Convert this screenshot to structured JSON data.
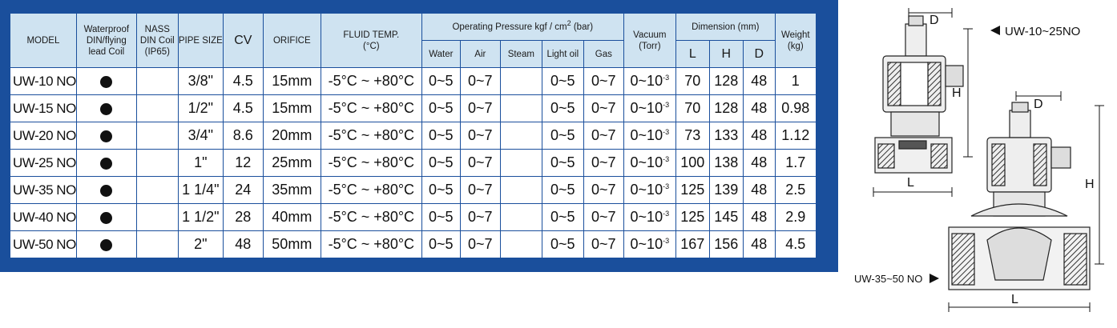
{
  "headers": {
    "model": "MODEL",
    "coil": "Waterproof DIN/flying lead Coil",
    "nass": "NASS DIN Coil (IP65)",
    "pipe": "PIPE SIZE",
    "cv": "CV",
    "orifice": "ORIFICE",
    "fluid": "FLUID TEMP.",
    "fluid_unit": "(°C)",
    "pressure": "Operating Pressure kgf / cm",
    "pressure_sup": "2",
    "pressure_tail": " (bar)",
    "water": "Water",
    "air": "Air",
    "steam": "Steam",
    "lightoil": "Light oil",
    "gas": "Gas",
    "vacuum": "Vacuum",
    "vacuum_unit": "(Torr)",
    "dimension": "Dimension (mm)",
    "dim_l": "L",
    "dim_h": "H",
    "dim_d": "D",
    "weight": "Weight",
    "weight_unit": "(kg)"
  },
  "rows": [
    {
      "model": "UW-10 NO",
      "pipe": "3/8\"",
      "cv": "4.5",
      "orifice": "15mm",
      "temp": "-5°C ~ +80°C",
      "water": "0~5",
      "air": "0~7",
      "steam": "",
      "lightoil": "0~5",
      "gas": "0~7",
      "vac_base": "0~10",
      "vac_exp": "-3",
      "l": "70",
      "h": "128",
      "d": "48",
      "weight": "1"
    },
    {
      "model": "UW-15 NO",
      "pipe": "1/2\"",
      "cv": "4.5",
      "orifice": "15mm",
      "temp": "-5°C ~ +80°C",
      "water": "0~5",
      "air": "0~7",
      "steam": "",
      "lightoil": "0~5",
      "gas": "0~7",
      "vac_base": "0~10",
      "vac_exp": "-3",
      "l": "70",
      "h": "128",
      "d": "48",
      "weight": "0.98"
    },
    {
      "model": "UW-20 NO",
      "pipe": "3/4\"",
      "cv": "8.6",
      "orifice": "20mm",
      "temp": "-5°C ~ +80°C",
      "water": "0~5",
      "air": "0~7",
      "steam": "",
      "lightoil": "0~5",
      "gas": "0~7",
      "vac_base": "0~10",
      "vac_exp": "-3",
      "l": "73",
      "h": "133",
      "d": "48",
      "weight": "1.12"
    },
    {
      "model": "UW-25 NO",
      "pipe": "1\"",
      "cv": "12",
      "orifice": "25mm",
      "temp": "-5°C ~ +80°C",
      "water": "0~5",
      "air": "0~7",
      "steam": "",
      "lightoil": "0~5",
      "gas": "0~7",
      "vac_base": "0~10",
      "vac_exp": "-3",
      "l": "100",
      "h": "138",
      "d": "48",
      "weight": "1.7"
    },
    {
      "model": "UW-35 NO",
      "pipe": "1 1/4\"",
      "cv": "24",
      "orifice": "35mm",
      "temp": "-5°C ~ +80°C",
      "water": "0~5",
      "air": "0~7",
      "steam": "",
      "lightoil": "0~5",
      "gas": "0~7",
      "vac_base": "0~10",
      "vac_exp": "-3",
      "l": "125",
      "h": "139",
      "d": "48",
      "weight": "2.5"
    },
    {
      "model": "UW-40 NO",
      "pipe": "1 1/2\"",
      "cv": "28",
      "orifice": "40mm",
      "temp": "-5°C ~ +80°C",
      "water": "0~5",
      "air": "0~7",
      "steam": "",
      "lightoil": "0~5",
      "gas": "0~7",
      "vac_base": "0~10",
      "vac_exp": "-3",
      "l": "125",
      "h": "145",
      "d": "48",
      "weight": "2.9"
    },
    {
      "model": "UW-50 NO",
      "pipe": "2\"",
      "cv": "48",
      "orifice": "50mm",
      "temp": "-5°C ~ +80°C",
      "water": "0~5",
      "air": "0~7",
      "steam": "",
      "lightoil": "0~5",
      "gas": "0~7",
      "vac_base": "0~10",
      "vac_exp": "-3",
      "l": "167",
      "h": "156",
      "d": "48",
      "weight": "4.5"
    }
  ],
  "diagram": {
    "top_label": "UW-10~25NO",
    "bottom_label": "UW-35~50 NO",
    "dim_d": "D",
    "dim_h": "H",
    "dim_l": "L"
  }
}
